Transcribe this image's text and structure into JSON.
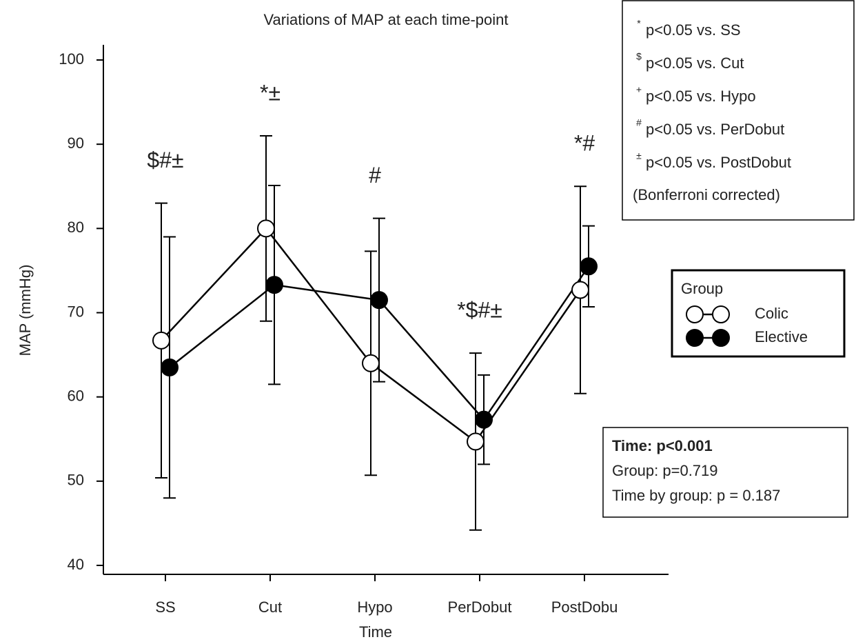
{
  "chart_data": {
    "type": "line",
    "title": "Variations of MAP at each time-point",
    "xlabel": "Time",
    "ylabel": "MAP (mmHg)",
    "categories": [
      "SS",
      "Cut",
      "Hypo",
      "PerDobut",
      "PostDobu"
    ],
    "ylim": [
      40,
      100
    ],
    "yticks": [
      40,
      50,
      60,
      70,
      80,
      90,
      100
    ],
    "series": [
      {
        "name": "Colic",
        "color": "#000000",
        "marker_fill": "#ffffff",
        "values": [
          66.7,
          80.0,
          64.0,
          54.7,
          72.7
        ],
        "errors": [
          16.3,
          11.0,
          13.3,
          10.5,
          12.3
        ]
      },
      {
        "name": "Elective",
        "color": "#000000",
        "marker_fill": "#000000",
        "values": [
          63.5,
          73.3,
          71.5,
          57.3,
          75.5
        ],
        "errors": [
          15.5,
          11.8,
          9.7,
          5.3,
          4.8
        ]
      }
    ],
    "legend_title": "Group",
    "annotations": [
      "$#±",
      "*±",
      "#",
      "*$#±",
      "*#"
    ],
    "key": [
      {
        "symbol": "*",
        "text": "p<0.05 vs. SS"
      },
      {
        "symbol": "$",
        "text": "p<0.05 vs. Cut"
      },
      {
        "symbol": "+",
        "text": "p<0.05 vs. Hypo"
      },
      {
        "symbol": "#",
        "text": "p<0.05 vs. PerDobut"
      },
      {
        "symbol": "±",
        "text": "p<0.05 vs. PostDobut"
      }
    ],
    "key_note": "(Bonferroni corrected)",
    "stats": [
      "Time: p<0.001",
      "Group: p=0.719",
      "Time by group: p = 0.187"
    ]
  }
}
